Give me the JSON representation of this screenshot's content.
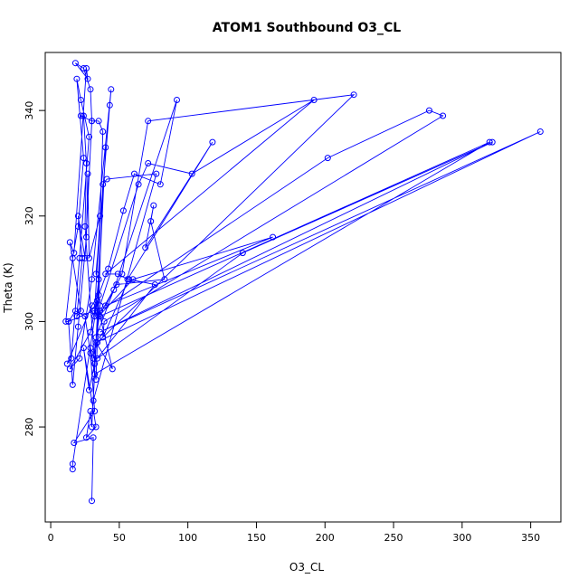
{
  "chart_data": {
    "type": "line",
    "title": "ATOM1 Southbound O3_CL",
    "xlabel": "O3_CL",
    "ylabel": "Theta (K)",
    "xlim": [
      -4,
      372
    ],
    "ylim": [
      262,
      351
    ],
    "xticks": [
      0,
      50,
      100,
      150,
      200,
      250,
      300,
      350
    ],
    "yticks": [
      280,
      300,
      320,
      340
    ],
    "grid": false,
    "legend": "none",
    "series_color": "#0000ff",
    "marker": "open-circle",
    "series": [
      {
        "values": [
          [
            30,
            266
          ],
          [
            31,
            278
          ],
          [
            17,
            277
          ],
          [
            32,
            283
          ],
          [
            29,
            294
          ],
          [
            25,
            301
          ],
          [
            18,
            302
          ],
          [
            13,
            300
          ],
          [
            11,
            300
          ],
          [
            16,
            312
          ],
          [
            20,
            318
          ],
          [
            24,
            331
          ],
          [
            19,
            346
          ],
          [
            22,
            342
          ],
          [
            28,
            335
          ],
          [
            21,
            312
          ],
          [
            15,
            293
          ],
          [
            12,
            292
          ],
          [
            30,
            303
          ],
          [
            35,
            305
          ],
          [
            42,
            310
          ],
          [
            53,
            321
          ],
          [
            61,
            328
          ],
          [
            80,
            326
          ],
          [
            92,
            342
          ],
          [
            46,
            306
          ],
          [
            33,
            297
          ],
          [
            36,
            303
          ],
          [
            64,
            326
          ],
          [
            71,
            330
          ],
          [
            103,
            328
          ],
          [
            192,
            342
          ],
          [
            40,
            309
          ],
          [
            49,
            309
          ],
          [
            56,
            308
          ],
          [
            118,
            334
          ],
          [
            69,
            314
          ],
          [
            75,
            322
          ],
          [
            73,
            319
          ],
          [
            83,
            308
          ],
          [
            48,
            307
          ],
          [
            35,
            301
          ],
          [
            60,
            308
          ],
          [
            162,
            316
          ],
          [
            40,
            303
          ],
          [
            52,
            309
          ],
          [
            71,
            338
          ],
          [
            221,
            343
          ],
          [
            34,
            296
          ],
          [
            31,
            293
          ],
          [
            36,
            302
          ],
          [
            202,
            331
          ],
          [
            276,
            340
          ],
          [
            286,
            339
          ],
          [
            39,
            300
          ],
          [
            38,
            297
          ],
          [
            57,
            308
          ],
          [
            76,
            307
          ],
          [
            34,
            293
          ],
          [
            140,
            313
          ],
          [
            322,
            334
          ],
          [
            36,
            298
          ],
          [
            357,
            336
          ],
          [
            33,
            296
          ],
          [
            45,
            291
          ],
          [
            36,
            301
          ],
          [
            320,
            334
          ],
          [
            32,
            290
          ],
          [
            29,
            295
          ],
          [
            33,
            289
          ],
          [
            38,
            326
          ],
          [
            41,
            327
          ],
          [
            77,
            328
          ],
          [
            31,
            285
          ],
          [
            40,
            333
          ],
          [
            30,
            280
          ],
          [
            29,
            283
          ],
          [
            26,
            278
          ],
          [
            33,
            280
          ],
          [
            24,
            295
          ],
          [
            28,
            287
          ],
          [
            32,
            292
          ],
          [
            25,
            318
          ],
          [
            26,
            330
          ],
          [
            24,
            339
          ],
          [
            22,
            339
          ],
          [
            30,
            338
          ],
          [
            29,
            344
          ],
          [
            24,
            348
          ],
          [
            18,
            349
          ],
          [
            27,
            346
          ],
          [
            26,
            348
          ],
          [
            17,
            313
          ],
          [
            14,
            315
          ],
          [
            22,
            302
          ],
          [
            19,
            301
          ],
          [
            23,
            312
          ],
          [
            20,
            320
          ],
          [
            25,
            312
          ],
          [
            30,
            338
          ],
          [
            35,
            338
          ],
          [
            38,
            336
          ],
          [
            34,
            302
          ],
          [
            31,
            302
          ],
          [
            13,
            300
          ],
          [
            16,
            288
          ],
          [
            20,
            299
          ],
          [
            26,
            316
          ],
          [
            27,
            328
          ],
          [
            28,
            312
          ],
          [
            36,
            320
          ],
          [
            32,
            302
          ],
          [
            29,
            298
          ],
          [
            14,
            291
          ],
          [
            21,
            293
          ],
          [
            30,
            308
          ],
          [
            44,
            344
          ],
          [
            43,
            341
          ],
          [
            33,
            309
          ],
          [
            35,
            308
          ],
          [
            32,
            301
          ],
          [
            34,
            304
          ],
          [
            16,
            273
          ],
          [
            16,
            272
          ]
        ]
      }
    ]
  }
}
